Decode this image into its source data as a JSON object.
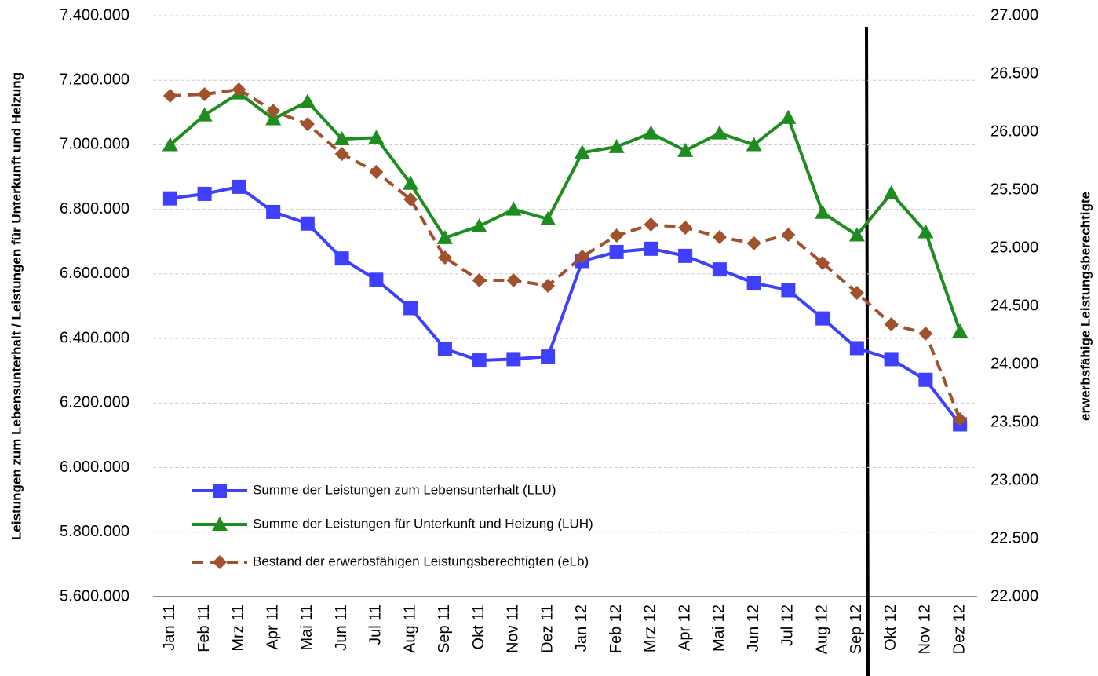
{
  "chart_data": {
    "type": "line",
    "ylabel": "Leistungen zum Lebensunterhalt / Leistungen für Unterkunft und Heizung",
    "y2label": "erwerbsfähige Leistungsberechtigte",
    "categories": [
      "Jan 11",
      "Feb 11",
      "Mrz 11",
      "Apr 11",
      "Mai 11",
      "Jun 11",
      "Jul 11",
      "Aug 11",
      "Sep 11",
      "Okt 11",
      "Nov 11",
      "Dez 11",
      "Jan 12",
      "Feb 12",
      "Mrz 12",
      "Apr 12",
      "Mai 12",
      "Jun 12",
      "Jul 12",
      "Aug 12",
      "Sep 12",
      "Okt 12",
      "Nov 12",
      "Dez 12"
    ],
    "series": [
      {
        "name": "Summe der Leistungen zum Lebensunterhalt (LLU)",
        "color": "#3f3fff",
        "marker": "square",
        "values": [
          6834000,
          6848000,
          6870000,
          6792000,
          6756000,
          6648000,
          6582000,
          6494000,
          6368000,
          6332000,
          6336000,
          6344000,
          6640000,
          6668000,
          6678000,
          6656000,
          6614000,
          6572000,
          6550000,
          6462000,
          6370000,
          6336000,
          6272000,
          6134000
        ]
      },
      {
        "name": "Summe der Leistungen für Unterkunft und Heizung (LUH)",
        "color": "#1e8c1e",
        "marker": "triangle",
        "values": [
          7000000,
          7092000,
          7160000,
          7080000,
          7134000,
          7018000,
          7022000,
          6880000,
          6712000,
          6748000,
          6800000,
          6770000,
          6976000,
          6994000,
          7036000,
          6982000,
          7036000,
          7000000,
          7084000,
          6790000,
          6720000,
          6850000,
          6730000,
          6422000
        ]
      },
      {
        "name": "Bestand der erwerbsfähigen Leistungsberechtigten (eLb)",
        "color": "#a0522d",
        "marker": "diamond",
        "dashed": true,
        "axis": "y2",
        "values": [
          26311,
          26324,
          26365,
          26182,
          26067,
          25810,
          25655,
          25419,
          24919,
          24723,
          24723,
          24676,
          24926,
          25108,
          25203,
          25176,
          25095,
          25041,
          25115,
          24872,
          24615,
          24345,
          24264,
          23527
        ]
      }
    ],
    "ylim": [
      5600000,
      7400000
    ],
    "yticks": [
      {
        "value": 5600000,
        "label": "5.600.000"
      },
      {
        "value": 5800000,
        "label": "5.800.000"
      },
      {
        "value": 6000000,
        "label": "6.000.000"
      },
      {
        "value": 6200000,
        "label": "6.200.000"
      },
      {
        "value": 6400000,
        "label": "6.400.000"
      },
      {
        "value": 6600000,
        "label": "6.600.000"
      },
      {
        "value": 6800000,
        "label": "6.800.000"
      },
      {
        "value": 7000000,
        "label": "7.000.000"
      },
      {
        "value": 7200000,
        "label": "7.200.000"
      },
      {
        "value": 7400000,
        "label": "7.400.000"
      }
    ],
    "y2lim": [
      22000,
      27000
    ],
    "y2ticks": [
      {
        "value": 22000,
        "label": "22.000"
      },
      {
        "value": 22500,
        "label": "22.500"
      },
      {
        "value": 23000,
        "label": "23.000"
      },
      {
        "value": 23500,
        "label": "23.500"
      },
      {
        "value": 24000,
        "label": "24.000"
      },
      {
        "value": 24500,
        "label": "24.500"
      },
      {
        "value": 25000,
        "label": "25.000"
      },
      {
        "value": 25500,
        "label": "25.500"
      },
      {
        "value": 26000,
        "label": "26.000"
      },
      {
        "value": 26500,
        "label": "26.500"
      },
      {
        "value": 27000,
        "label": "27.000"
      }
    ],
    "grid": true,
    "legend": "lower left"
  }
}
